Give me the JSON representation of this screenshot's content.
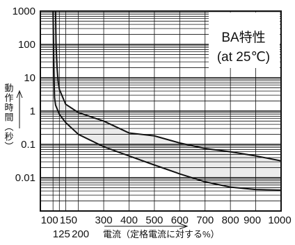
{
  "chart_data": {
    "type": "area",
    "title": "BA特性",
    "subtitle": "(at 25℃)",
    "ylabel": "動作時間（秒）",
    "xlabel": "電流（定格電流に対する%）",
    "x_scale": "linear",
    "y_scale": "log",
    "xlim": [
      50,
      1000
    ],
    "ylim": [
      0.001,
      1000
    ],
    "grid": true,
    "y_ticks": [
      {
        "value": 1000,
        "label": "1000"
      },
      {
        "value": 100,
        "label": "100"
      },
      {
        "value": 10,
        "label": "10"
      },
      {
        "value": 1,
        "label": "1"
      },
      {
        "value": 0.1,
        "label": "0.1"
      },
      {
        "value": 0.01,
        "label": "0.01"
      }
    ],
    "x_ticks_upper": [
      {
        "value": 100,
        "label": "100"
      },
      {
        "value": 150,
        "label": "150"
      },
      {
        "value": 300,
        "label": "300"
      },
      {
        "value": 400,
        "label": "400"
      },
      {
        "value": 500,
        "label": "500"
      },
      {
        "value": 600,
        "label": "600"
      },
      {
        "value": 700,
        "label": "700"
      },
      {
        "value": 800,
        "label": "800"
      },
      {
        "value": 900,
        "label": "900"
      },
      {
        "value": 1000,
        "label": "1000"
      }
    ],
    "x_ticks_lower": [
      {
        "value": 125,
        "label": "125"
      },
      {
        "value": 200,
        "label": "200"
      }
    ],
    "series": [
      {
        "role": "upper",
        "x": [
          110,
          112,
          116,
          120,
          125,
          150,
          200,
          300,
          400,
          500,
          600,
          700,
          800,
          900,
          1000
        ],
        "y": [
          1000,
          100,
          20,
          8,
          4.5,
          1.6,
          0.9,
          0.5,
          0.22,
          0.18,
          0.11,
          0.075,
          0.06,
          0.045,
          0.032
        ]
      },
      {
        "role": "lower",
        "x": [
          100,
          102,
          104,
          106,
          110,
          125,
          150,
          200,
          300,
          400,
          500,
          600,
          700,
          800,
          900,
          1000
        ],
        "y": [
          1000,
          100,
          10,
          2.5,
          1.5,
          0.8,
          0.45,
          0.2,
          0.085,
          0.045,
          0.024,
          0.013,
          0.0075,
          0.0052,
          0.0044,
          0.0042
        ]
      }
    ],
    "band_fill": "#ebebeb",
    "line_color": "#111111",
    "frame_color": "#111111"
  }
}
